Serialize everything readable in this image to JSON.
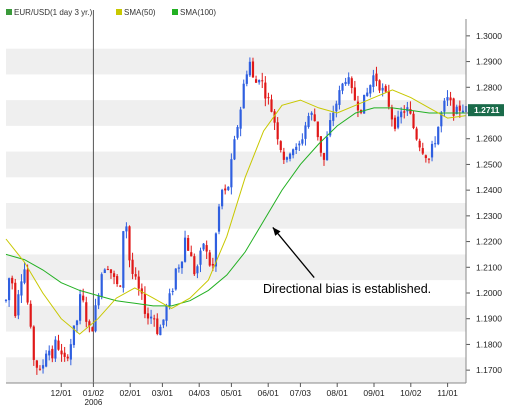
{
  "chart_data": {
    "type": "candlestick",
    "symbol": "EUR/USD",
    "legend": [
      {
        "label": "EUR/USD(1 day  3 yr.)",
        "color": "#3a9a3a"
      },
      {
        "label": "SMA(50)",
        "color": "#c8c800"
      },
      {
        "label": "SMA(100)",
        "color": "#22b022"
      }
    ],
    "y_ticks": [
      "1.3000",
      "1.2900",
      "1.2800",
      "1.2700",
      "1.2600",
      "1.2500",
      "1.2400",
      "1.2300",
      "1.2200",
      "1.2100",
      "1.2000",
      "1.1900",
      "1.1800",
      "1.1700"
    ],
    "ylim": [
      1.165,
      1.305
    ],
    "x_ticks": [
      {
        "label": "12/01",
        "t": 0.12
      },
      {
        "label": "01/02",
        "t": 0.19
      },
      {
        "label": "02/01",
        "t": 0.27
      },
      {
        "label": "03/01",
        "t": 0.34
      },
      {
        "label": "04/03",
        "t": 0.42
      },
      {
        "label": "05/01",
        "t": 0.49
      },
      {
        "label": "06/01",
        "t": 0.57
      },
      {
        "label": "07/03",
        "t": 0.64
      },
      {
        "label": "08/01",
        "t": 0.72
      },
      {
        "label": "09/01",
        "t": 0.8
      },
      {
        "label": "10/02",
        "t": 0.88
      },
      {
        "label": "11/01",
        "t": 0.96
      }
    ],
    "year_label": "2006",
    "year_marker_t": 0.19,
    "current_price": "1.2711",
    "current_price_color": "#1a6b4a",
    "up_color": "#2f5fe0",
    "down_color": "#e01818",
    "grid_band": true,
    "price_path": [
      {
        "t": 0.0,
        "v": 1.197
      },
      {
        "t": 0.01,
        "v": 1.21
      },
      {
        "t": 0.02,
        "v": 1.193
      },
      {
        "t": 0.03,
        "v": 1.205
      },
      {
        "t": 0.04,
        "v": 1.21
      },
      {
        "t": 0.05,
        "v": 1.19
      },
      {
        "t": 0.06,
        "v": 1.175
      },
      {
        "t": 0.075,
        "v": 1.168
      },
      {
        "t": 0.09,
        "v": 1.18
      },
      {
        "t": 0.1,
        "v": 1.175
      },
      {
        "t": 0.11,
        "v": 1.182
      },
      {
        "t": 0.125,
        "v": 1.172
      },
      {
        "t": 0.14,
        "v": 1.18
      },
      {
        "t": 0.155,
        "v": 1.19
      },
      {
        "t": 0.16,
        "v": 1.198
      },
      {
        "t": 0.17,
        "v": 1.195
      },
      {
        "t": 0.18,
        "v": 1.185
      },
      {
        "t": 0.19,
        "v": 1.188
      },
      {
        "t": 0.2,
        "v": 1.2
      },
      {
        "t": 0.21,
        "v": 1.21
      },
      {
        "t": 0.22,
        "v": 1.212
      },
      {
        "t": 0.235,
        "v": 1.205
      },
      {
        "t": 0.25,
        "v": 1.2
      },
      {
        "t": 0.255,
        "v": 1.225
      },
      {
        "t": 0.26,
        "v": 1.23
      },
      {
        "t": 0.27,
        "v": 1.21
      },
      {
        "t": 0.28,
        "v": 1.205
      },
      {
        "t": 0.29,
        "v": 1.2
      },
      {
        "t": 0.3,
        "v": 1.195
      },
      {
        "t": 0.31,
        "v": 1.19
      },
      {
        "t": 0.32,
        "v": 1.192
      },
      {
        "t": 0.33,
        "v": 1.185
      },
      {
        "t": 0.34,
        "v": 1.188
      },
      {
        "t": 0.35,
        "v": 1.195
      },
      {
        "t": 0.36,
        "v": 1.2
      },
      {
        "t": 0.37,
        "v": 1.21
      },
      {
        "t": 0.38,
        "v": 1.212
      },
      {
        "t": 0.39,
        "v": 1.222
      },
      {
        "t": 0.4,
        "v": 1.215
      },
      {
        "t": 0.41,
        "v": 1.208
      },
      {
        "t": 0.42,
        "v": 1.212
      },
      {
        "t": 0.43,
        "v": 1.22
      },
      {
        "t": 0.44,
        "v": 1.212
      },
      {
        "t": 0.45,
        "v": 1.21
      },
      {
        "t": 0.46,
        "v": 1.23
      },
      {
        "t": 0.47,
        "v": 1.24
      },
      {
        "t": 0.48,
        "v": 1.238
      },
      {
        "t": 0.49,
        "v": 1.25
      },
      {
        "t": 0.5,
        "v": 1.262
      },
      {
        "t": 0.51,
        "v": 1.272
      },
      {
        "t": 0.52,
        "v": 1.285
      },
      {
        "t": 0.53,
        "v": 1.29
      },
      {
        "t": 0.54,
        "v": 1.28
      },
      {
        "t": 0.55,
        "v": 1.285
      },
      {
        "t": 0.56,
        "v": 1.28
      },
      {
        "t": 0.57,
        "v": 1.275
      },
      {
        "t": 0.58,
        "v": 1.27
      },
      {
        "t": 0.59,
        "v": 1.262
      },
      {
        "t": 0.6,
        "v": 1.255
      },
      {
        "t": 0.61,
        "v": 1.25
      },
      {
        "t": 0.62,
        "v": 1.258
      },
      {
        "t": 0.63,
        "v": 1.255
      },
      {
        "t": 0.64,
        "v": 1.258
      },
      {
        "t": 0.65,
        "v": 1.265
      },
      {
        "t": 0.66,
        "v": 1.27
      },
      {
        "t": 0.67,
        "v": 1.268
      },
      {
        "t": 0.68,
        "v": 1.26
      },
      {
        "t": 0.69,
        "v": 1.25
      },
      {
        "t": 0.7,
        "v": 1.262
      },
      {
        "t": 0.71,
        "v": 1.27
      },
      {
        "t": 0.72,
        "v": 1.275
      },
      {
        "t": 0.73,
        "v": 1.28
      },
      {
        "t": 0.74,
        "v": 1.285
      },
      {
        "t": 0.75,
        "v": 1.278
      },
      {
        "t": 0.76,
        "v": 1.275
      },
      {
        "t": 0.77,
        "v": 1.272
      },
      {
        "t": 0.78,
        "v": 1.275
      },
      {
        "t": 0.79,
        "v": 1.28
      },
      {
        "t": 0.8,
        "v": 1.285
      },
      {
        "t": 0.81,
        "v": 1.282
      },
      {
        "t": 0.82,
        "v": 1.278
      },
      {
        "t": 0.83,
        "v": 1.275
      },
      {
        "t": 0.84,
        "v": 1.268
      },
      {
        "t": 0.85,
        "v": 1.265
      },
      {
        "t": 0.86,
        "v": 1.27
      },
      {
        "t": 0.87,
        "v": 1.272
      },
      {
        "t": 0.88,
        "v": 1.268
      },
      {
        "t": 0.89,
        "v": 1.262
      },
      {
        "t": 0.9,
        "v": 1.258
      },
      {
        "t": 0.91,
        "v": 1.255
      },
      {
        "t": 0.92,
        "v": 1.252
      },
      {
        "t": 0.93,
        "v": 1.258
      },
      {
        "t": 0.94,
        "v": 1.265
      },
      {
        "t": 0.95,
        "v": 1.272
      },
      {
        "t": 0.96,
        "v": 1.275
      },
      {
        "t": 0.97,
        "v": 1.272
      },
      {
        "t": 0.98,
        "v": 1.27
      },
      {
        "t": 0.99,
        "v": 1.273
      },
      {
        "t": 1.0,
        "v": 1.271
      }
    ],
    "sma50": [
      {
        "t": 0.0,
        "v": 1.221
      },
      {
        "t": 0.04,
        "v": 1.212
      },
      {
        "t": 0.08,
        "v": 1.2
      },
      {
        "t": 0.12,
        "v": 1.19
      },
      {
        "t": 0.16,
        "v": 1.184
      },
      {
        "t": 0.2,
        "v": 1.19
      },
      {
        "t": 0.24,
        "v": 1.198
      },
      {
        "t": 0.28,
        "v": 1.202
      },
      {
        "t": 0.32,
        "v": 1.198
      },
      {
        "t": 0.36,
        "v": 1.194
      },
      {
        "t": 0.4,
        "v": 1.198
      },
      {
        "t": 0.44,
        "v": 1.205
      },
      {
        "t": 0.48,
        "v": 1.222
      },
      {
        "t": 0.52,
        "v": 1.245
      },
      {
        "t": 0.56,
        "v": 1.263
      },
      {
        "t": 0.6,
        "v": 1.273
      },
      {
        "t": 0.64,
        "v": 1.275
      },
      {
        "t": 0.68,
        "v": 1.272
      },
      {
        "t": 0.72,
        "v": 1.27
      },
      {
        "t": 0.76,
        "v": 1.273
      },
      {
        "t": 0.8,
        "v": 1.276
      },
      {
        "t": 0.84,
        "v": 1.279
      },
      {
        "t": 0.88,
        "v": 1.276
      },
      {
        "t": 0.92,
        "v": 1.272
      },
      {
        "t": 0.96,
        "v": 1.268
      },
      {
        "t": 1.0,
        "v": 1.269
      }
    ],
    "sma100": [
      {
        "t": 0.0,
        "v": 1.215
      },
      {
        "t": 0.04,
        "v": 1.213
      },
      {
        "t": 0.08,
        "v": 1.209
      },
      {
        "t": 0.12,
        "v": 1.204
      },
      {
        "t": 0.16,
        "v": 1.201
      },
      {
        "t": 0.2,
        "v": 1.199
      },
      {
        "t": 0.24,
        "v": 1.197
      },
      {
        "t": 0.28,
        "v": 1.196
      },
      {
        "t": 0.32,
        "v": 1.195
      },
      {
        "t": 0.36,
        "v": 1.195
      },
      {
        "t": 0.4,
        "v": 1.197
      },
      {
        "t": 0.44,
        "v": 1.201
      },
      {
        "t": 0.48,
        "v": 1.207
      },
      {
        "t": 0.52,
        "v": 1.216
      },
      {
        "t": 0.56,
        "v": 1.228
      },
      {
        "t": 0.6,
        "v": 1.24
      },
      {
        "t": 0.64,
        "v": 1.25
      },
      {
        "t": 0.68,
        "v": 1.258
      },
      {
        "t": 0.72,
        "v": 1.265
      },
      {
        "t": 0.76,
        "v": 1.27
      },
      {
        "t": 0.8,
        "v": 1.272
      },
      {
        "t": 0.84,
        "v": 1.272
      },
      {
        "t": 0.88,
        "v": 1.271
      },
      {
        "t": 0.92,
        "v": 1.27
      },
      {
        "t": 0.96,
        "v": 1.27
      },
      {
        "t": 1.0,
        "v": 1.27
      }
    ],
    "annotation": {
      "text": "Directional bias is established.",
      "arrow_from": {
        "t": 0.67,
        "v": 1.206
      },
      "arrow_to": {
        "t": 0.58,
        "v": 1.2255
      }
    }
  }
}
